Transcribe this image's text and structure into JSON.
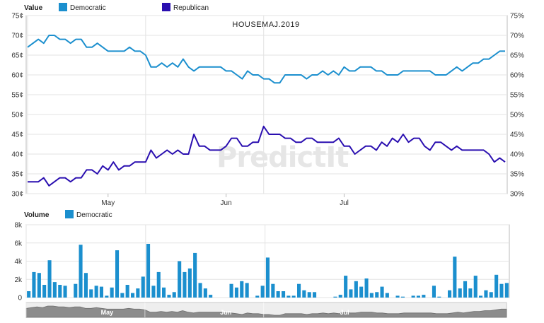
{
  "watermark": "PredictIt",
  "colors": {
    "democratic": "#1b8fce",
    "republican": "#2a0fb0",
    "grid": "#e3e3e3",
    "axis": "#bbbbbb",
    "nav_fill": "#8c8c8c"
  },
  "chart_data": [
    {
      "type": "line",
      "title": "HOUSEMAJ.2019",
      "header_label": "Value",
      "x_tick_labels": [
        "May",
        "Jun",
        "Jul"
      ],
      "x_tick_index": [
        15,
        37,
        59
      ],
      "x_gridline_index": [
        0,
        22,
        44
      ],
      "ylim": [
        30,
        75
      ],
      "y_ticks": [
        "30¢",
        "35¢",
        "40¢",
        "45¢",
        "50¢",
        "55¢",
        "60¢",
        "65¢",
        "70¢",
        "75¢"
      ],
      "y_ticks_right": [
        "30%",
        "35%",
        "40%",
        "45%",
        "50%",
        "55%",
        "60%",
        "65%",
        "70%",
        "75%"
      ],
      "series": [
        {
          "name": "Democratic",
          "values": [
            67,
            68,
            69,
            68,
            70,
            70,
            69,
            69,
            68,
            69,
            69,
            67,
            67,
            68,
            67,
            66,
            66,
            66,
            66,
            67,
            66,
            66,
            65,
            62,
            62,
            63,
            62,
            63,
            62,
            64,
            62,
            61,
            62,
            62,
            62,
            62,
            62,
            61,
            61,
            60,
            59,
            61,
            60,
            60,
            59,
            59,
            58,
            58,
            60,
            60,
            60,
            60,
            59,
            60,
            60,
            61,
            60,
            61,
            60,
            62,
            61,
            61,
            62,
            62,
            62,
            61,
            61,
            60,
            60,
            60,
            61,
            61,
            61,
            61,
            61,
            61,
            60,
            60,
            60,
            61,
            62,
            61,
            62,
            63,
            63,
            64,
            64,
            65,
            66,
            66
          ]
        },
        {
          "name": "Republican",
          "values": [
            33,
            33,
            33,
            34,
            32,
            33,
            34,
            34,
            33,
            34,
            34,
            36,
            36,
            35,
            37,
            36,
            38,
            36,
            37,
            37,
            38,
            38,
            38,
            41,
            39,
            40,
            41,
            40,
            41,
            40,
            40,
            45,
            42,
            42,
            41,
            41,
            41,
            42,
            44,
            44,
            42,
            42,
            43,
            43,
            47,
            45,
            45,
            45,
            44,
            44,
            43,
            43,
            44,
            44,
            43,
            43,
            43,
            43,
            44,
            42,
            42,
            40,
            41,
            42,
            42,
            41,
            43,
            42,
            44,
            43,
            45,
            43,
            44,
            44,
            42,
            41,
            43,
            43,
            42,
            41,
            42,
            41,
            41,
            41,
            41,
            41,
            40,
            38,
            39,
            38
          ]
        }
      ]
    },
    {
      "type": "bar",
      "header_label": "Volume",
      "ylim": [
        0,
        8000
      ],
      "y_ticks": [
        "0",
        "2k",
        "4k",
        "6k",
        "8k"
      ],
      "nav_labels": [
        "May",
        "Jun",
        "Jul"
      ],
      "series": [
        {
          "name": "Democratic",
          "values": [
            700,
            2800,
            2700,
            1400,
            4100,
            1700,
            1400,
            1300,
            0,
            1500,
            5800,
            2700,
            900,
            1300,
            1200,
            200,
            1100,
            5200,
            500,
            1400,
            500,
            1000,
            2300,
            5900,
            1300,
            2800,
            1100,
            300,
            600,
            4000,
            2800,
            3200,
            4900,
            1600,
            1000,
            300,
            0,
            0,
            0,
            1500,
            1100,
            1800,
            1600,
            0,
            200,
            1300,
            4400,
            1500,
            700,
            700,
            200,
            200,
            1500,
            800,
            600,
            600,
            0,
            0,
            0,
            100,
            300,
            2400,
            900,
            1800,
            1200,
            2100,
            500,
            600,
            1200,
            500,
            0,
            200,
            100,
            0,
            200,
            200,
            300,
            0,
            1300,
            100,
            0,
            800,
            4500,
            1000,
            1800,
            1000,
            2400,
            200,
            800,
            600,
            2500,
            1500,
            1600
          ]
        }
      ]
    }
  ]
}
